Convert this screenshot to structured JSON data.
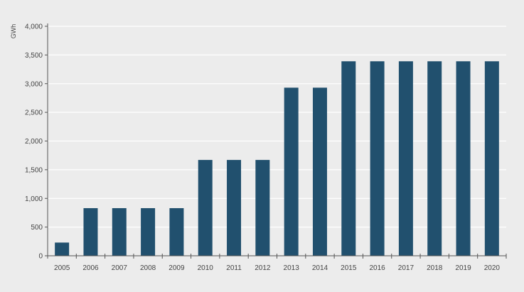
{
  "chart_data": {
    "type": "bar",
    "title": "",
    "xlabel": "",
    "ylabel": "GWh",
    "ylim": [
      0,
      4000
    ],
    "yticks": [
      0,
      500,
      1000,
      1500,
      2000,
      2500,
      3000,
      3500,
      4000
    ],
    "ytick_labels": [
      "0",
      "500",
      "1,000",
      "1,500",
      "2,000",
      "2,500",
      "3,000",
      "3,500",
      "4,000"
    ],
    "categories": [
      "2005",
      "2006",
      "2007",
      "2008",
      "2009",
      "2010",
      "2011",
      "2012",
      "2013",
      "2014",
      "2015",
      "2016",
      "2017",
      "2018",
      "2019",
      "2020"
    ],
    "values": [
      230,
      830,
      830,
      830,
      830,
      1670,
      1670,
      1670,
      2930,
      2930,
      3390,
      3390,
      3390,
      3390,
      3390,
      3390
    ],
    "grid": true,
    "legend": "none",
    "colors": {
      "bar": "#21506e",
      "grid": "#ffffff",
      "axis": "#555555",
      "background": "#ececec"
    }
  }
}
